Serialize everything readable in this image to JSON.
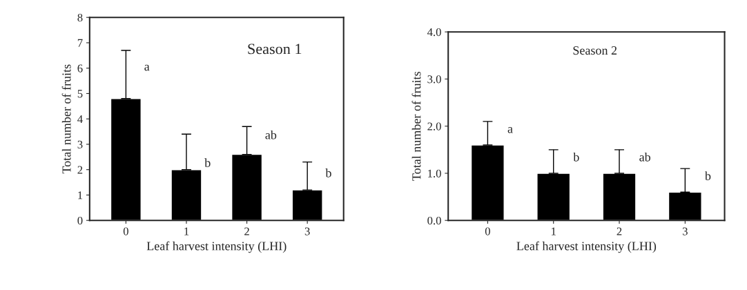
{
  "chart_data": [
    {
      "type": "bar",
      "categories": [
        "0",
        "1",
        "2",
        "3"
      ],
      "values": [
        4.8,
        2.0,
        2.6,
        1.2
      ],
      "color": "#000000",
      "errors": [
        [
          4.8,
          6.7
        ],
        [
          2.0,
          3.4
        ],
        [
          2.6,
          3.7
        ],
        [
          1.2,
          2.3
        ]
      ],
      "xlabel": "Leaf harvest intensity (LHI)",
      "ylabel": "Total number of fruits",
      "ylim": [
        0,
        8
      ],
      "yticks": [
        0,
        1,
        2,
        3,
        4,
        5,
        6,
        7,
        8
      ],
      "grid": false,
      "annotations": [
        "Season 1",
        {
          "text": "a",
          "x": "0",
          "y": 5.8
        },
        {
          "text": "b",
          "x": "1",
          "y": 2.0
        },
        {
          "text": "ab",
          "x": "2",
          "y": 3.1
        },
        {
          "text": "b",
          "x": "3",
          "y": 1.6
        }
      ]
    },
    {
      "type": "bar",
      "categories": [
        "0",
        "1",
        "2",
        "3"
      ],
      "values": [
        1.6,
        1.0,
        1.0,
        0.6
      ],
      "color": "#000000",
      "errors": [
        [
          1.6,
          2.1
        ],
        [
          1.0,
          1.5
        ],
        [
          1.0,
          1.5
        ],
        [
          0.6,
          1.1
        ]
      ],
      "xlabel": "Leaf harvest intensity (LHI)",
      "ylabel": "Total number of fruits",
      "ylim": [
        0,
        4
      ],
      "yticks": [
        {
          "value": 0,
          "label": "0.0"
        },
        {
          "value": 1,
          "label": "1.0"
        },
        {
          "value": 2,
          "label": "2.0"
        },
        {
          "value": 3,
          "label": "3.0"
        },
        {
          "value": 4,
          "label": "4.0"
        }
      ],
      "grid": false,
      "annotations": [
        "Season 2",
        {
          "text": "a",
          "x": "0",
          "y": 1.8
        },
        {
          "text": "b",
          "x": "1",
          "y": 1.2
        },
        {
          "text": "ab",
          "x": "2",
          "y": 1.2
        },
        {
          "text": "b",
          "x": "3",
          "y": 0.8
        }
      ]
    }
  ]
}
